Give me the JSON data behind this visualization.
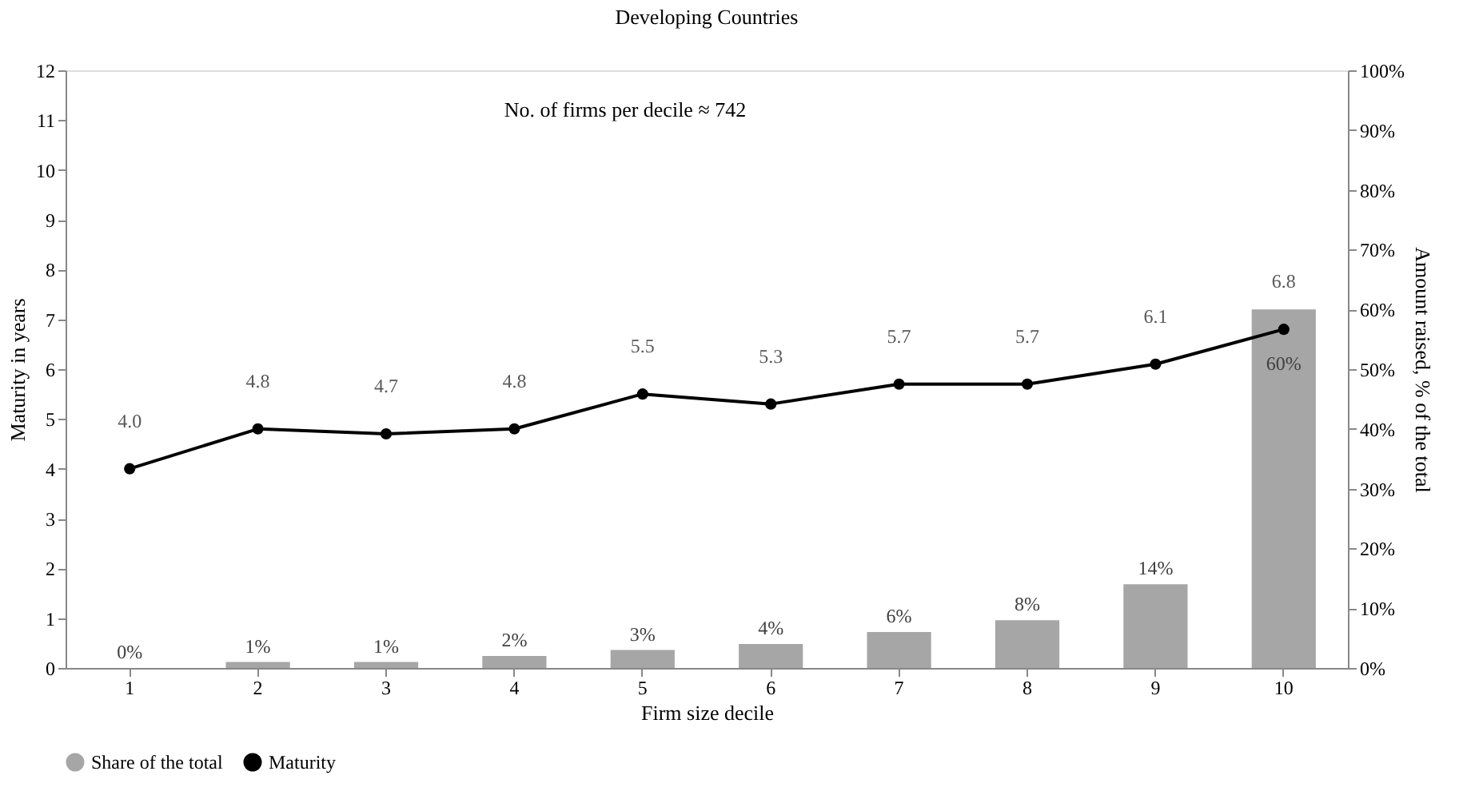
{
  "chart_data": {
    "type": "bar",
    "title": "Developing Countries",
    "xlabel": "Firm size decile",
    "ylabel": "Maturity in years",
    "y2label": "Amount raised, % of the total",
    "categories": [
      "1",
      "2",
      "3",
      "4",
      "5",
      "6",
      "7",
      "8",
      "9",
      "10"
    ],
    "series": [
      {
        "name": "Share of the total",
        "type": "bar",
        "axis": "y2",
        "color": "#a6a6a6",
        "values": [
          0,
          1,
          1,
          2,
          3,
          4,
          6,
          8,
          14,
          60
        ],
        "value_labels": [
          "0%",
          "1%",
          "1%",
          "2%",
          "3%",
          "4%",
          "6%",
          "8%",
          "14%",
          "60%"
        ]
      },
      {
        "name": "Maturity",
        "type": "line",
        "color": "#000000",
        "values": [
          4.0,
          4.8,
          4.7,
          4.8,
          5.5,
          5.3,
          5.7,
          5.7,
          6.1,
          6.8
        ],
        "value_labels": [
          "4.0",
          "4.8",
          "4.7",
          "4.8",
          "5.5",
          "5.3",
          "5.7",
          "5.7",
          "6.1",
          "6.8"
        ]
      }
    ],
    "ylim": [
      0,
      12
    ],
    "yticks": [
      0,
      1,
      2,
      3,
      4,
      5,
      6,
      7,
      8,
      9,
      10,
      11,
      12
    ],
    "y2lim": [
      0,
      100
    ],
    "y2ticks": [
      {
        "value": 0,
        "label": "0%"
      },
      {
        "value": 10,
        "label": "10%"
      },
      {
        "value": 20,
        "label": "20%"
      },
      {
        "value": 30,
        "label": "30%"
      },
      {
        "value": 40,
        "label": "40%"
      },
      {
        "value": 50,
        "label": "50%"
      },
      {
        "value": 60,
        "label": "60%"
      },
      {
        "value": 70,
        "label": "70%"
      },
      {
        "value": 80,
        "label": "80%"
      },
      {
        "value": 90,
        "label": "90%"
      },
      {
        "value": 100,
        "label": "100%"
      }
    ],
    "annotations": [
      "No. of firms per decile ≈ 742"
    ],
    "grid": false,
    "legend": "bottom",
    "marker": "circle",
    "line_style": "solid"
  }
}
